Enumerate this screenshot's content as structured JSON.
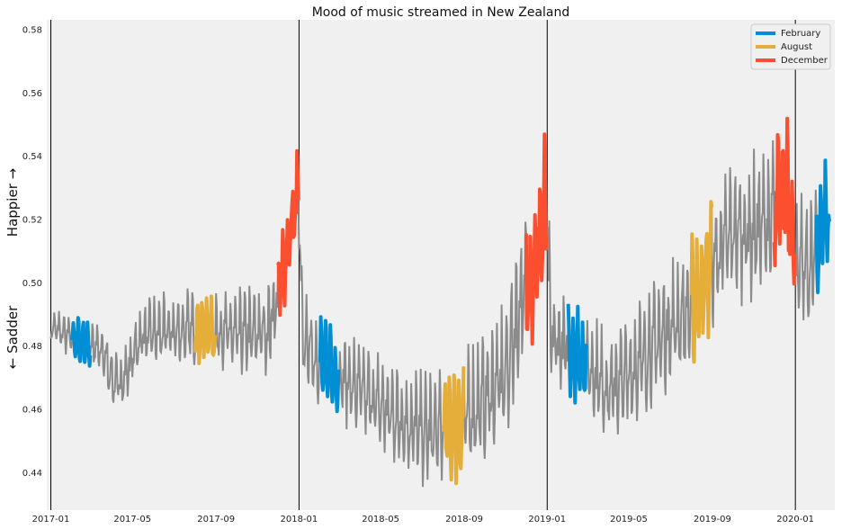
{
  "chart_data": {
    "type": "line",
    "title": "Mood of music streamed in New Zealand",
    "xlabel": "",
    "ylabel_top": "Happier →",
    "ylabel_bottom": "← Sadder",
    "x_date_range": [
      "2016-12-26",
      "2020-02-28"
    ],
    "ylim": [
      0.428,
      0.583
    ],
    "x_ticks": [
      "2017-01",
      "2017-05",
      "2017-09",
      "2018-01",
      "2018-05",
      "2018-09",
      "2019-01",
      "2019-05",
      "2019-09",
      "2020-01"
    ],
    "y_ticks": [
      0.44,
      0.46,
      0.48,
      0.5,
      0.52,
      0.54,
      0.56,
      0.58
    ],
    "y_tick_labels": [
      "0.44",
      "0.46",
      "0.48",
      "0.50",
      "0.52",
      "0.54",
      "0.56",
      "0.58"
    ],
    "year_boundaries": [
      "2017-01-01",
      "2018-01-01",
      "2019-01-01",
      "2020-01-01"
    ],
    "grid": false,
    "legend_position": "top-right",
    "background": "#f0f0f0",
    "base_color": "#8b8b8b",
    "series": [
      {
        "name": "February",
        "color": "#008fd5"
      },
      {
        "name": "August",
        "color": "#e5ae38"
      },
      {
        "name": "December",
        "color": "#fc4f30"
      }
    ],
    "trend": [
      [
        "2017-01-01",
        0.486
      ],
      [
        "2017-01-31",
        0.482
      ],
      [
        "2017-02-28",
        0.48
      ],
      [
        "2017-03-20",
        0.477
      ],
      [
        "2017-04-05",
        0.467
      ],
      [
        "2017-04-20",
        0.47
      ],
      [
        "2017-05-15",
        0.483
      ],
      [
        "2017-07-01",
        0.484
      ],
      [
        "2017-08-15",
        0.485
      ],
      [
        "2017-10-01",
        0.483
      ],
      [
        "2017-11-15",
        0.484
      ],
      [
        "2017-12-01",
        0.495
      ],
      [
        "2017-12-15",
        0.51
      ],
      [
        "2017-12-31",
        0.528
      ],
      [
        "2018-01-06",
        0.482
      ],
      [
        "2018-02-01",
        0.474
      ],
      [
        "2018-02-28",
        0.47
      ],
      [
        "2018-04-01",
        0.465
      ],
      [
        "2018-05-15",
        0.458
      ],
      [
        "2018-07-01",
        0.452
      ],
      [
        "2018-08-15",
        0.453
      ],
      [
        "2018-10-01",
        0.462
      ],
      [
        "2018-11-01",
        0.47
      ],
      [
        "2018-11-20",
        0.49
      ],
      [
        "2018-12-15",
        0.505
      ],
      [
        "2018-12-31",
        0.523
      ],
      [
        "2019-01-06",
        0.482
      ],
      [
        "2019-02-01",
        0.478
      ],
      [
        "2019-02-28",
        0.474
      ],
      [
        "2019-04-01",
        0.465
      ],
      [
        "2019-05-01",
        0.47
      ],
      [
        "2019-06-01",
        0.478
      ],
      [
        "2019-07-01",
        0.485
      ],
      [
        "2019-08-01",
        0.49
      ],
      [
        "2019-09-01",
        0.505
      ],
      [
        "2019-10-01",
        0.515
      ],
      [
        "2019-11-01",
        0.515
      ],
      [
        "2019-12-01",
        0.52
      ],
      [
        "2019-12-20",
        0.53
      ],
      [
        "2020-01-05",
        0.502
      ],
      [
        "2020-01-25",
        0.504
      ],
      [
        "2020-02-10",
        0.518
      ],
      [
        "2020-02-20",
        0.52
      ]
    ],
    "amplitude": [
      [
        "2017-01-01",
        0.004
      ],
      [
        "2017-03-01",
        0.006
      ],
      [
        "2017-06-01",
        0.008
      ],
      [
        "2017-11-01",
        0.01
      ],
      [
        "2018-01-10",
        0.01
      ],
      [
        "2018-06-01",
        0.012
      ],
      [
        "2018-09-01",
        0.014
      ],
      [
        "2018-12-31",
        0.018
      ],
      [
        "2019-01-10",
        0.01
      ],
      [
        "2019-06-01",
        0.014
      ],
      [
        "2019-09-01",
        0.016
      ],
      [
        "2019-12-31",
        0.018
      ],
      [
        "2020-02-28",
        0.012
      ]
    ]
  }
}
